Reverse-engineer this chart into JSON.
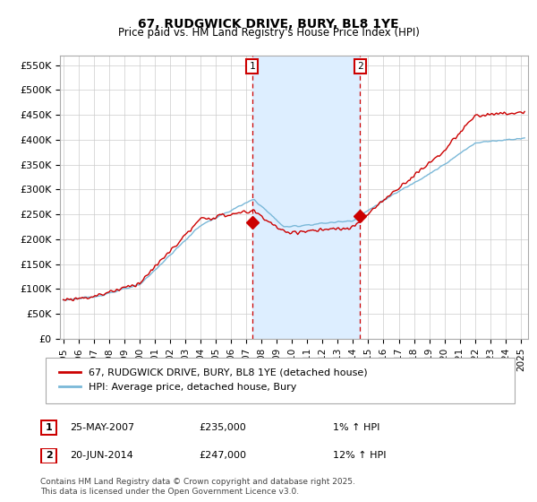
{
  "title": "67, RUDGWICK DRIVE, BURY, BL8 1YE",
  "subtitle": "Price paid vs. HM Land Registry's House Price Index (HPI)",
  "ylabel_ticks": [
    "£0",
    "£50K",
    "£100K",
    "£150K",
    "£200K",
    "£250K",
    "£300K",
    "£350K",
    "£400K",
    "£450K",
    "£500K",
    "£550K"
  ],
  "ytick_values": [
    0,
    50000,
    100000,
    150000,
    200000,
    250000,
    300000,
    350000,
    400000,
    450000,
    500000,
    550000
  ],
  "ylim": [
    0,
    570000
  ],
  "xlim_start": 1994.8,
  "xlim_end": 2025.5,
  "marker1_x": 2007.38,
  "marker1_y": 235000,
  "marker1_label": "1",
  "marker1_date": "25-MAY-2007",
  "marker1_price": "£235,000",
  "marker1_hpi": "1% ↑ HPI",
  "marker2_x": 2014.47,
  "marker2_y": 247000,
  "marker2_label": "2",
  "marker2_date": "20-JUN-2014",
  "marker2_price": "£247,000",
  "marker2_hpi": "12% ↑ HPI",
  "house_line_color": "#cc0000",
  "hpi_line_color": "#7ab8d8",
  "shaded_region_color": "#ddeeff",
  "vline_color": "#cc0000",
  "marker_box_color": "#cc0000",
  "legend_house_label": "67, RUDGWICK DRIVE, BURY, BL8 1YE (detached house)",
  "legend_hpi_label": "HPI: Average price, detached house, Bury",
  "footnote": "Contains HM Land Registry data © Crown copyright and database right 2025.\nThis data is licensed under the Open Government Licence v3.0.",
  "background_color": "#ffffff",
  "plot_bg_color": "#ffffff",
  "grid_color": "#cccccc"
}
